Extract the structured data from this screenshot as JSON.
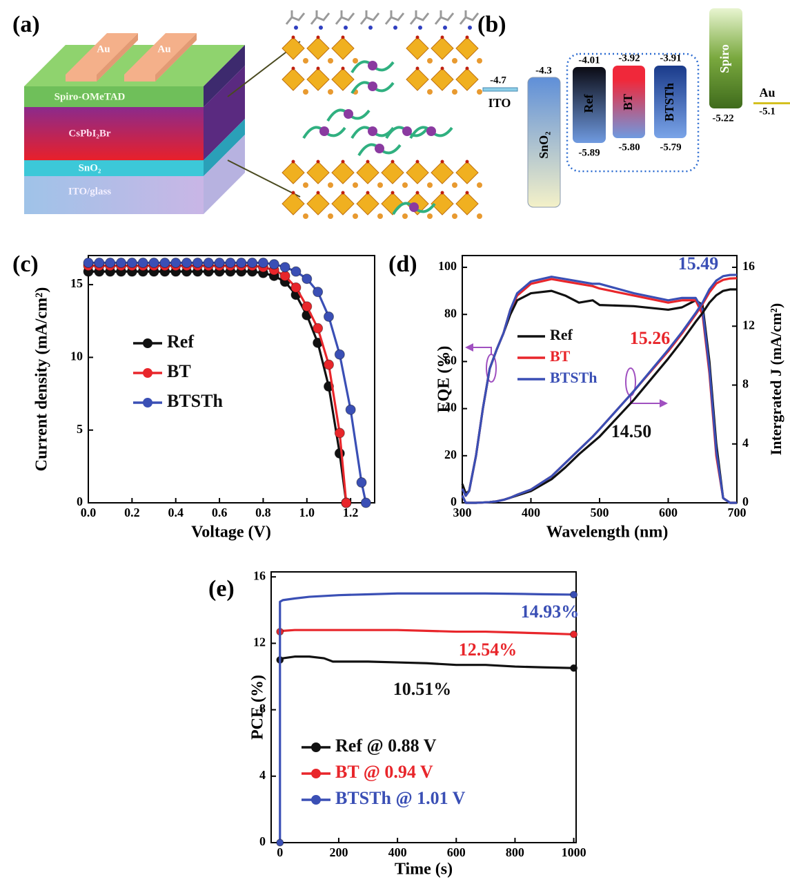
{
  "panel_a": {
    "label": "(a)",
    "electrodes": [
      "Au",
      "Au"
    ],
    "layers": [
      "Spiro-OMeTAD",
      "CsPbI₂Br",
      "SnO₂",
      "ITO/glass"
    ]
  },
  "panel_b": {
    "label": "(b)",
    "levels": [
      {
        "name": "ITO",
        "values": [
          "-4.7"
        ]
      },
      {
        "name": "SnO₂",
        "values": [
          "-4.3"
        ]
      },
      {
        "name": "Ref",
        "values": [
          "-4.01",
          "-5.89"
        ]
      },
      {
        "name": "BT",
        "values": [
          "-3.92",
          "-5.80"
        ]
      },
      {
        "name": "BTSTh",
        "values": [
          "-3.91",
          "-5.79"
        ]
      },
      {
        "name": "Spiro",
        "values": [
          "-5.22"
        ]
      },
      {
        "name": "Au",
        "values": [
          "-5.1"
        ]
      }
    ]
  },
  "chart_data": [
    {
      "type": "line",
      "panel_label": "(c)",
      "x_label": "Voltage (V)",
      "y_label": "Current density (mA/cm²)",
      "xlim": [
        0,
        1.31
      ],
      "ylim": [
        0,
        17
      ],
      "xticks": [
        {
          "value": 0,
          "label": "0.0"
        },
        0.2,
        0.4,
        0.6,
        0.8,
        {
          "value": 1,
          "label": "1.0"
        },
        1.2
      ],
      "yticks": [
        0,
        5,
        10,
        15
      ],
      "markers": "all",
      "series": [
        {
          "name": "Ref",
          "color": "#111111",
          "x": [
            0,
            0.05,
            0.1,
            0.15,
            0.2,
            0.25,
            0.3,
            0.35,
            0.4,
            0.45,
            0.5,
            0.55,
            0.6,
            0.65,
            0.7,
            0.75,
            0.8,
            0.85,
            0.9,
            0.95,
            1.0,
            1.05,
            1.1,
            1.15,
            1.18
          ],
          "values": [
            15.9,
            15.9,
            15.9,
            15.9,
            15.9,
            15.9,
            15.9,
            15.9,
            15.9,
            15.9,
            15.9,
            15.9,
            15.9,
            15.9,
            15.9,
            15.9,
            15.8,
            15.6,
            15.2,
            14.3,
            12.9,
            11.0,
            8.0,
            3.4,
            0
          ]
        },
        {
          "name": "BT",
          "color": "#e8262b",
          "x": [
            0,
            0.05,
            0.1,
            0.15,
            0.2,
            0.25,
            0.3,
            0.35,
            0.4,
            0.45,
            0.5,
            0.55,
            0.6,
            0.65,
            0.7,
            0.75,
            0.8,
            0.85,
            0.9,
            0.95,
            1.0,
            1.05,
            1.1,
            1.15,
            1.18
          ],
          "values": [
            16.3,
            16.3,
            16.3,
            16.3,
            16.3,
            16.3,
            16.3,
            16.3,
            16.3,
            16.3,
            16.3,
            16.3,
            16.3,
            16.3,
            16.3,
            16.3,
            16.2,
            16.0,
            15.6,
            14.8,
            13.5,
            12.0,
            9.5,
            4.8,
            0
          ]
        },
        {
          "name": "BTSTh",
          "color": "#3a4fb5",
          "x": [
            0,
            0.05,
            0.1,
            0.15,
            0.2,
            0.25,
            0.3,
            0.35,
            0.4,
            0.45,
            0.5,
            0.55,
            0.6,
            0.65,
            0.7,
            0.75,
            0.8,
            0.85,
            0.9,
            0.95,
            1.0,
            1.05,
            1.1,
            1.15,
            1.2,
            1.25,
            1.27
          ],
          "values": [
            16.5,
            16.5,
            16.5,
            16.5,
            16.5,
            16.5,
            16.5,
            16.5,
            16.5,
            16.5,
            16.5,
            16.5,
            16.5,
            16.5,
            16.5,
            16.5,
            16.5,
            16.4,
            16.2,
            15.9,
            15.4,
            14.5,
            12.8,
            10.2,
            6.4,
            1.4,
            0
          ]
        }
      ]
    },
    {
      "type": "line",
      "panel_label": "(d)",
      "x_label": "Wavelength (nm)",
      "y_label": "EQE (%)",
      "y2_label": "Intergrated J (mA/cm²)",
      "xlim": [
        300,
        700
      ],
      "ylim": [
        0,
        105
      ],
      "y2lim": [
        0,
        16.8
      ],
      "xticks": [
        300,
        400,
        500,
        600,
        700
      ],
      "yticks": [
        0,
        20,
        40,
        60,
        80,
        100
      ],
      "y2ticks": [
        0,
        4,
        8,
        12,
        16
      ],
      "x": [
        300,
        305,
        310,
        320,
        330,
        340,
        350,
        360,
        370,
        380,
        400,
        430,
        450,
        470,
        490,
        500,
        550,
        600,
        620,
        640,
        650,
        660,
        670,
        680,
        690,
        700
      ],
      "series": [
        {
          "name": "Ref",
          "color": "#111111",
          "values": [
            8,
            4,
            5,
            20,
            40,
            57,
            65,
            72,
            80,
            86,
            89,
            90,
            88,
            85,
            86,
            84,
            83.5,
            82,
            83,
            86,
            84,
            60,
            25,
            2,
            0,
            0
          ]
        },
        {
          "name": "BT",
          "color": "#e8262b",
          "values": [
            6,
            3,
            5,
            20,
            40,
            57,
            65,
            72,
            82,
            88,
            93,
            95,
            94,
            93,
            92,
            91,
            88,
            85,
            86,
            86,
            80,
            55,
            20,
            2,
            0,
            0
          ]
        },
        {
          "name": "BTSTh",
          "color": "#3a4fb5",
          "values": [
            6,
            3,
            5,
            20,
            40,
            57,
            65,
            72,
            82,
            89,
            94,
            96,
            95,
            94,
            93,
            93,
            89,
            86,
            87,
            87,
            82,
            57,
            22,
            2,
            0,
            0
          ]
        },
        {
          "color": "#111111",
          "axis": "y2",
          "values": [
            0.5,
            0,
            0,
            0,
            0.02,
            0.05,
            0.1,
            0.2,
            0.35,
            0.5,
            0.8,
            1.6,
            2.4,
            3.3,
            4.1,
            4.5,
            7,
            9.8,
            11,
            12.3,
            12.9,
            13.6,
            14.1,
            14.4,
            14.5,
            14.5
          ]
        },
        {
          "color": "#e8262b",
          "axis": "y2",
          "values": [
            0.5,
            0,
            0,
            0,
            0.02,
            0.05,
            0.1,
            0.2,
            0.35,
            0.55,
            0.9,
            1.8,
            2.7,
            3.6,
            4.5,
            5,
            7.6,
            10.3,
            11.5,
            12.8,
            13.5,
            14.3,
            14.9,
            15.15,
            15.24,
            15.26
          ]
        },
        {
          "color": "#3a4fb5",
          "axis": "y2",
          "values": [
            0.5,
            0,
            0,
            0,
            0.02,
            0.05,
            0.1,
            0.2,
            0.35,
            0.55,
            0.9,
            1.8,
            2.7,
            3.6,
            4.5,
            5,
            7.6,
            10.4,
            11.6,
            12.9,
            13.6,
            14.5,
            15.1,
            15.4,
            15.48,
            15.49
          ]
        }
      ],
      "annotations": [
        {
          "text": "15.49",
          "color": "#3a4fb5"
        },
        {
          "text": "15.26",
          "color": "#e8262b"
        },
        {
          "text": "14.50",
          "color": "#111111"
        }
      ]
    },
    {
      "type": "line",
      "panel_label": "(e)",
      "x_label": "Time (s)",
      "y_label": "PCE (%)",
      "xlim": [
        -30,
        1008
      ],
      "ylim": [
        0,
        16.3
      ],
      "xticks": [
        0,
        200,
        400,
        600,
        800,
        1000
      ],
      "yticks": [
        0,
        4,
        8,
        12,
        16
      ],
      "markers": "ends",
      "series": [
        {
          "name": "Ref @ 0.88 V",
          "color": "#111111",
          "x": [
            0,
            10,
            50,
            100,
            150,
            180,
            200,
            300,
            400,
            500,
            600,
            700,
            800,
            900,
            1000
          ],
          "values": [
            11.0,
            11.1,
            11.2,
            11.2,
            11.1,
            10.9,
            10.9,
            10.9,
            10.85,
            10.8,
            10.7,
            10.7,
            10.6,
            10.55,
            10.51
          ]
        },
        {
          "name": "BT @ 0.94 V",
          "color": "#e8262b",
          "x": [
            0,
            10,
            50,
            100,
            150,
            180,
            200,
            300,
            400,
            500,
            600,
            700,
            800,
            900,
            1000
          ],
          "values": [
            12.7,
            12.75,
            12.8,
            12.8,
            12.8,
            12.8,
            12.8,
            12.8,
            12.8,
            12.75,
            12.7,
            12.7,
            12.65,
            12.6,
            12.54
          ]
        },
        {
          "name": "BTSTh @ 1.01 V",
          "color": "#3a4fb5",
          "x": [
            0,
            0,
            10,
            50,
            100,
            200,
            300,
            400,
            500,
            600,
            700,
            800,
            900,
            1000
          ],
          "values": [
            0,
            14.5,
            14.6,
            14.7,
            14.8,
            14.9,
            14.95,
            15,
            15,
            15,
            15,
            14.98,
            14.95,
            14.93
          ]
        }
      ],
      "annotations": [
        {
          "text": "14.93%",
          "color": "#3a4fb5"
        },
        {
          "text": "12.54%",
          "color": "#e8262b"
        },
        {
          "text": "10.51%",
          "color": "#111111"
        }
      ]
    }
  ]
}
